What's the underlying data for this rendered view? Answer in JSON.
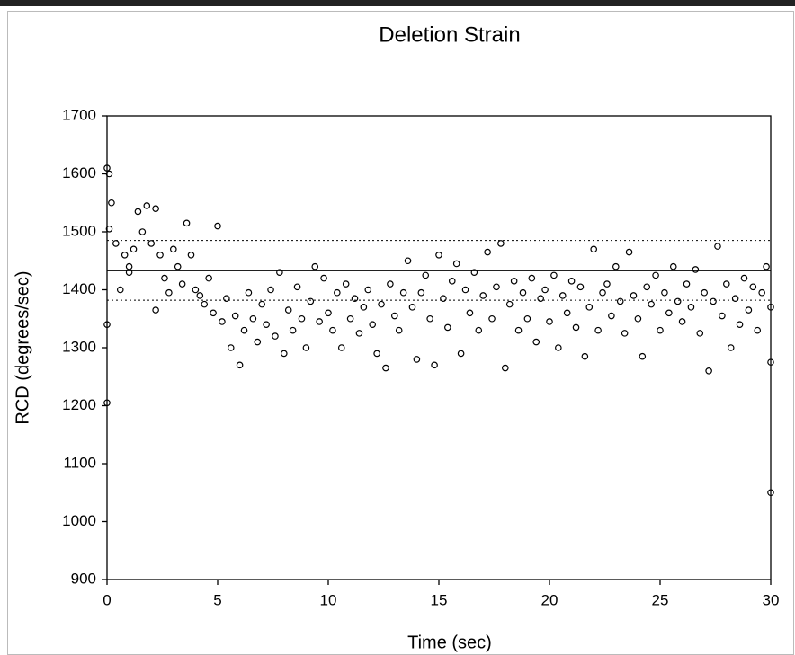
{
  "chart_data": {
    "type": "scatter",
    "title": "Deletion Strain",
    "x_label": "Time (sec)",
    "y_label": "RCD (degrees/sec)",
    "xlim": [
      0,
      30
    ],
    "xticks": [
      0,
      5,
      10,
      15,
      20,
      25,
      30
    ],
    "ylim": [
      900,
      1700
    ],
    "yticks": [
      900,
      1000,
      1100,
      1200,
      1300,
      1400,
      1500,
      1600,
      1700
    ],
    "color": "#000000",
    "hlines": [
      {
        "value": 1433,
        "style": "solid"
      },
      {
        "value": 1485,
        "style": "dotted"
      },
      {
        "value": 1382,
        "style": "dotted"
      }
    ],
    "x": [
      0,
      0.2,
      0.4,
      0.6,
      0.8,
      1,
      1.2,
      1.4,
      1.6,
      1.8,
      2,
      2.2,
      2.4,
      2.6,
      2.8,
      3,
      3.2,
      3.4,
      3.6,
      3.8,
      4,
      4.2,
      4.4,
      4.6,
      4.8,
      5,
      5.2,
      5.4,
      5.6,
      5.8,
      6,
      6.2,
      6.4,
      6.6,
      6.8,
      7,
      7.2,
      7.4,
      7.6,
      7.8,
      8,
      8.2,
      8.4,
      8.6,
      8.8,
      9,
      9.2,
      9.4,
      9.6,
      9.8,
      10,
      10.2,
      10.4,
      10.6,
      10.8,
      11,
      11.2,
      11.4,
      11.6,
      11.8,
      12,
      12.2,
      12.4,
      12.6,
      12.8,
      13,
      13.2,
      13.4,
      13.6,
      13.8,
      14,
      14.2,
      14.4,
      14.6,
      14.8,
      15,
      15.2,
      15.4,
      15.6,
      15.8,
      16,
      16.2,
      16.4,
      16.6,
      16.8,
      17,
      17.2,
      17.4,
      17.6,
      17.8,
      18,
      18.2,
      18.4,
      18.6,
      18.8,
      19,
      19.2,
      19.4,
      19.6,
      19.8,
      20,
      20.2,
      20.4,
      20.6,
      20.8,
      21,
      21.2,
      21.4,
      21.6,
      21.8,
      22,
      22.2,
      22.4,
      22.6,
      22.8,
      23,
      23.2,
      23.4,
      23.6,
      23.8,
      24,
      24.2,
      24.4,
      24.6,
      24.8,
      25,
      25.2,
      25.4,
      25.6,
      25.8,
      26,
      26.2,
      26.4,
      26.6,
      26.8,
      27,
      27.2,
      27.4,
      27.6,
      27.8,
      28,
      28.2,
      28.4,
      28.6,
      28.8,
      29,
      29.2,
      29.4,
      29.6,
      29.8,
      30,
      0,
      0,
      0.1,
      0.1,
      30,
      30,
      2.2,
      1
    ],
    "values": [
      1205,
      1550,
      1480,
      1400,
      1460,
      1440,
      1470,
      1535,
      1500,
      1545,
      1480,
      1540,
      1460,
      1420,
      1395,
      1470,
      1440,
      1410,
      1515,
      1460,
      1400,
      1390,
      1375,
      1420,
      1360,
      1510,
      1345,
      1385,
      1300,
      1355,
      1270,
      1330,
      1395,
      1350,
      1310,
      1375,
      1340,
      1400,
      1320,
      1430,
      1290,
      1365,
      1330,
      1405,
      1350,
      1300,
      1380,
      1440,
      1345,
      1420,
      1360,
      1330,
      1395,
      1300,
      1410,
      1350,
      1385,
      1325,
      1370,
      1400,
      1340,
      1290,
      1375,
      1265,
      1410,
      1355,
      1330,
      1395,
      1450,
      1370,
      1280,
      1395,
      1425,
      1350,
      1270,
      1460,
      1385,
      1335,
      1415,
      1445,
      1290,
      1400,
      1360,
      1430,
      1330,
      1390,
      1465,
      1350,
      1405,
      1480,
      1265,
      1375,
      1415,
      1330,
      1395,
      1350,
      1420,
      1310,
      1385,
      1400,
      1345,
      1425,
      1300,
      1390,
      1360,
      1415,
      1335,
      1405,
      1285,
      1370,
      1470,
      1330,
      1395,
      1410,
      1355,
      1440,
      1380,
      1325,
      1465,
      1390,
      1350,
      1285,
      1405,
      1375,
      1425,
      1330,
      1395,
      1360,
      1440,
      1380,
      1345,
      1410,
      1370,
      1435,
      1325,
      1395,
      1260,
      1380,
      1475,
      1355,
      1410,
      1300,
      1385,
      1340,
      1420,
      1365,
      1405,
      1330,
      1395,
      1440,
      1050,
      1340,
      1610,
      1600,
      1505,
      1275,
      1370,
      1365,
      1430
    ]
  }
}
